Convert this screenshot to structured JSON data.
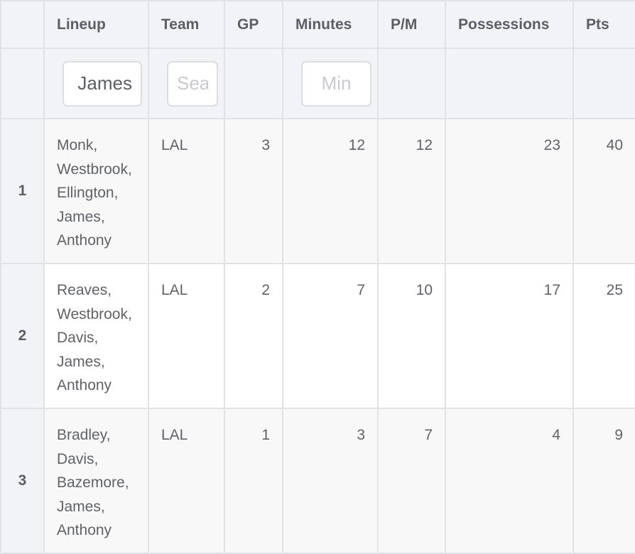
{
  "table": {
    "columns": {
      "index": "",
      "lineup": "Lineup",
      "team": "Team",
      "gp": "GP",
      "minutes": "Minutes",
      "pm": "P/M",
      "possessions": "Possessions",
      "pts": "Pts"
    },
    "filters": {
      "lineup_value": "James",
      "team_placeholder": "Search",
      "minutes_placeholder": "Min"
    },
    "rows": [
      {
        "index": "1",
        "lineup": [
          "Monk,",
          "Westbrook,",
          "Ellington,",
          "James,",
          "Anthony"
        ],
        "team": "LAL",
        "gp": "3",
        "minutes": "12",
        "pm": "12",
        "possessions": "23",
        "pts": "40"
      },
      {
        "index": "2",
        "lineup": [
          "Reaves,",
          "Westbrook,",
          "Davis,",
          "James,",
          "Anthony"
        ],
        "team": "LAL",
        "gp": "2",
        "minutes": "7",
        "pm": "10",
        "possessions": "17",
        "pts": "25"
      },
      {
        "index": "3",
        "lineup": [
          "Bradley,",
          "Davis,",
          "Bazemore,",
          "James,",
          "Anthony"
        ],
        "team": "LAL",
        "gp": "1",
        "minutes": "3",
        "pm": "7",
        "possessions": "4",
        "pts": "9"
      }
    ]
  }
}
